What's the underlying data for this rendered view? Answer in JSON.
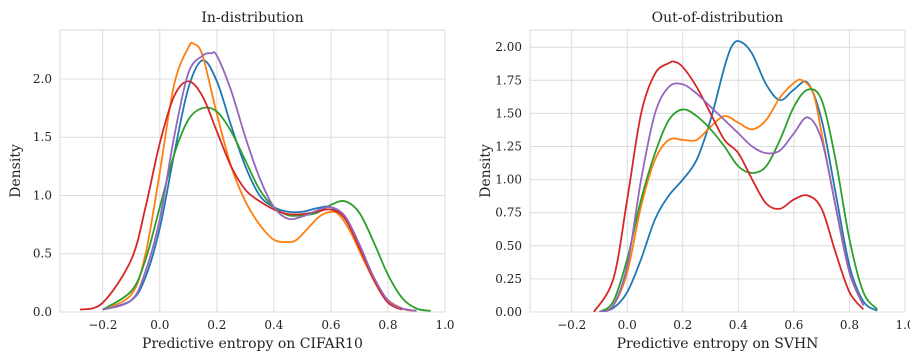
{
  "chart_data": [
    {
      "type": "line",
      "title": "In-distribution",
      "xlabel": "Predictive entropy on CIFAR10",
      "ylabel": "Density",
      "xlim": [
        -0.35,
        1.0
      ],
      "ylim": [
        0,
        2.42
      ],
      "xticks": [
        -0.2,
        0.0,
        0.2,
        0.4,
        0.6,
        0.8,
        1.0
      ],
      "xtick_labels": [
        "−0.2",
        "0.0",
        "0.2",
        "0.4",
        "0.6",
        "0.8",
        "1.0"
      ],
      "yticks": [
        0.0,
        0.5,
        1.0,
        1.5,
        2.0
      ],
      "ytick_labels": [
        "0.0",
        "0.5",
        "1.0",
        "1.5",
        "2.0"
      ],
      "grid": true,
      "series": [
        {
          "color": "#1f77b4",
          "x": [
            -0.2,
            -0.1,
            -0.05,
            0.0,
            0.05,
            0.1,
            0.15,
            0.2,
            0.25,
            0.3,
            0.35,
            0.4,
            0.45,
            0.5,
            0.55,
            0.6,
            0.65,
            0.7,
            0.75,
            0.8,
            0.85,
            0.9
          ],
          "y": [
            0.02,
            0.1,
            0.3,
            0.72,
            1.35,
            1.92,
            2.16,
            1.98,
            1.6,
            1.25,
            1.0,
            0.9,
            0.86,
            0.86,
            0.89,
            0.9,
            0.8,
            0.55,
            0.28,
            0.1,
            0.03,
            0.01
          ]
        },
        {
          "color": "#ff7f0e",
          "x": [
            -0.2,
            -0.1,
            -0.05,
            0.0,
            0.05,
            0.1,
            0.12,
            0.15,
            0.2,
            0.25,
            0.3,
            0.35,
            0.4,
            0.45,
            0.48,
            0.52,
            0.56,
            0.6,
            0.63,
            0.67,
            0.72,
            0.78,
            0.85,
            0.9
          ],
          "y": [
            0.02,
            0.15,
            0.5,
            1.2,
            1.95,
            2.27,
            2.3,
            2.2,
            1.7,
            1.25,
            0.95,
            0.75,
            0.62,
            0.6,
            0.62,
            0.72,
            0.82,
            0.86,
            0.83,
            0.68,
            0.42,
            0.15,
            0.03,
            0.01
          ]
        },
        {
          "color": "#2ca02c",
          "x": [
            -0.2,
            -0.1,
            -0.05,
            0.0,
            0.05,
            0.1,
            0.15,
            0.2,
            0.25,
            0.3,
            0.35,
            0.4,
            0.45,
            0.5,
            0.55,
            0.6,
            0.65,
            0.7,
            0.75,
            0.8,
            0.85,
            0.9,
            0.95
          ],
          "y": [
            0.02,
            0.18,
            0.45,
            0.9,
            1.35,
            1.65,
            1.75,
            1.72,
            1.55,
            1.3,
            1.05,
            0.9,
            0.83,
            0.83,
            0.85,
            0.92,
            0.95,
            0.85,
            0.6,
            0.32,
            0.12,
            0.03,
            0.01
          ]
        },
        {
          "color": "#d62728",
          "x": [
            -0.28,
            -0.2,
            -0.1,
            -0.05,
            0.0,
            0.05,
            0.1,
            0.15,
            0.2,
            0.25,
            0.3,
            0.35,
            0.4,
            0.45,
            0.5,
            0.55,
            0.6,
            0.65,
            0.7,
            0.75,
            0.8,
            0.85
          ],
          "y": [
            0.02,
            0.08,
            0.45,
            0.9,
            1.45,
            1.85,
            1.98,
            1.85,
            1.55,
            1.25,
            1.05,
            0.95,
            0.88,
            0.84,
            0.84,
            0.86,
            0.88,
            0.8,
            0.55,
            0.28,
            0.08,
            0.02
          ]
        },
        {
          "color": "#9467bd",
          "x": [
            -0.2,
            -0.1,
            -0.05,
            0.0,
            0.05,
            0.1,
            0.15,
            0.18,
            0.2,
            0.25,
            0.3,
            0.35,
            0.4,
            0.45,
            0.5,
            0.55,
            0.6,
            0.65,
            0.7,
            0.75,
            0.8,
            0.85,
            0.9
          ],
          "y": [
            0.02,
            0.1,
            0.35,
            0.8,
            1.5,
            2.05,
            2.2,
            2.22,
            2.2,
            1.9,
            1.5,
            1.15,
            0.9,
            0.8,
            0.82,
            0.87,
            0.9,
            0.82,
            0.58,
            0.3,
            0.1,
            0.03,
            0.01
          ]
        }
      ]
    },
    {
      "type": "line",
      "title": "Out-of-distribution",
      "xlabel": "Predictive entropy on SVHN",
      "ylabel": "Density",
      "xlim": [
        -0.35,
        1.0
      ],
      "ylim": [
        0,
        2.13
      ],
      "xticks": [
        -0.2,
        0.0,
        0.2,
        0.4,
        0.6,
        0.8,
        1.0
      ],
      "xtick_labels": [
        "−0.2",
        "0.0",
        "0.2",
        "0.4",
        "0.6",
        "0.8",
        "1.0"
      ],
      "yticks": [
        0.0,
        0.25,
        0.5,
        0.75,
        1.0,
        1.25,
        1.5,
        1.75,
        2.0
      ],
      "ytick_labels": [
        "0.00",
        "0.25",
        "0.50",
        "0.75",
        "1.00",
        "1.25",
        "1.50",
        "1.75",
        "2.00"
      ],
      "grid": true,
      "series": [
        {
          "color": "#1f77b4",
          "x": [
            -0.1,
            -0.05,
            0.0,
            0.05,
            0.1,
            0.15,
            0.2,
            0.25,
            0.3,
            0.35,
            0.38,
            0.41,
            0.45,
            0.5,
            0.55,
            0.6,
            0.65,
            0.7,
            0.75,
            0.8,
            0.85,
            0.9
          ],
          "y": [
            0.0,
            0.03,
            0.15,
            0.4,
            0.7,
            0.88,
            1.0,
            1.15,
            1.45,
            1.85,
            2.02,
            2.04,
            1.95,
            1.72,
            1.6,
            1.68,
            1.73,
            1.45,
            0.9,
            0.35,
            0.08,
            0.01
          ]
        },
        {
          "color": "#ff7f0e",
          "x": [
            -0.1,
            -0.05,
            0.0,
            0.05,
            0.1,
            0.15,
            0.2,
            0.25,
            0.3,
            0.35,
            0.4,
            0.45,
            0.5,
            0.55,
            0.6,
            0.63,
            0.67,
            0.7,
            0.75,
            0.8,
            0.85
          ],
          "y": [
            0.0,
            0.05,
            0.3,
            0.8,
            1.15,
            1.3,
            1.3,
            1.3,
            1.4,
            1.48,
            1.43,
            1.38,
            1.45,
            1.62,
            1.73,
            1.75,
            1.65,
            1.35,
            0.8,
            0.3,
            0.05
          ]
        },
        {
          "color": "#2ca02c",
          "x": [
            -0.1,
            -0.05,
            0.0,
            0.05,
            0.1,
            0.15,
            0.2,
            0.25,
            0.3,
            0.35,
            0.4,
            0.45,
            0.5,
            0.55,
            0.6,
            0.65,
            0.7,
            0.75,
            0.8,
            0.85,
            0.9
          ],
          "y": [
            0.0,
            0.08,
            0.4,
            0.85,
            1.2,
            1.45,
            1.53,
            1.48,
            1.38,
            1.25,
            1.1,
            1.05,
            1.1,
            1.3,
            1.55,
            1.68,
            1.6,
            1.15,
            0.55,
            0.15,
            0.02
          ]
        },
        {
          "color": "#d62728",
          "x": [
            -0.12,
            -0.05,
            0.0,
            0.05,
            0.1,
            0.15,
            0.17,
            0.2,
            0.25,
            0.3,
            0.35,
            0.4,
            0.45,
            0.5,
            0.55,
            0.6,
            0.65,
            0.7,
            0.75,
            0.8,
            0.85
          ],
          "y": [
            0.0,
            0.25,
            0.85,
            1.5,
            1.8,
            1.88,
            1.89,
            1.85,
            1.7,
            1.5,
            1.3,
            1.2,
            1.0,
            0.82,
            0.78,
            0.85,
            0.88,
            0.78,
            0.45,
            0.15,
            0.02
          ]
        },
        {
          "color": "#9467bd",
          "x": [
            -0.1,
            -0.05,
            0.0,
            0.05,
            0.1,
            0.15,
            0.2,
            0.25,
            0.3,
            0.35,
            0.4,
            0.45,
            0.5,
            0.55,
            0.6,
            0.65,
            0.7,
            0.75,
            0.8,
            0.85
          ],
          "y": [
            0.0,
            0.05,
            0.35,
            1.0,
            1.5,
            1.7,
            1.72,
            1.65,
            1.55,
            1.45,
            1.35,
            1.25,
            1.2,
            1.22,
            1.35,
            1.47,
            1.3,
            0.8,
            0.3,
            0.05
          ]
        }
      ]
    }
  ]
}
